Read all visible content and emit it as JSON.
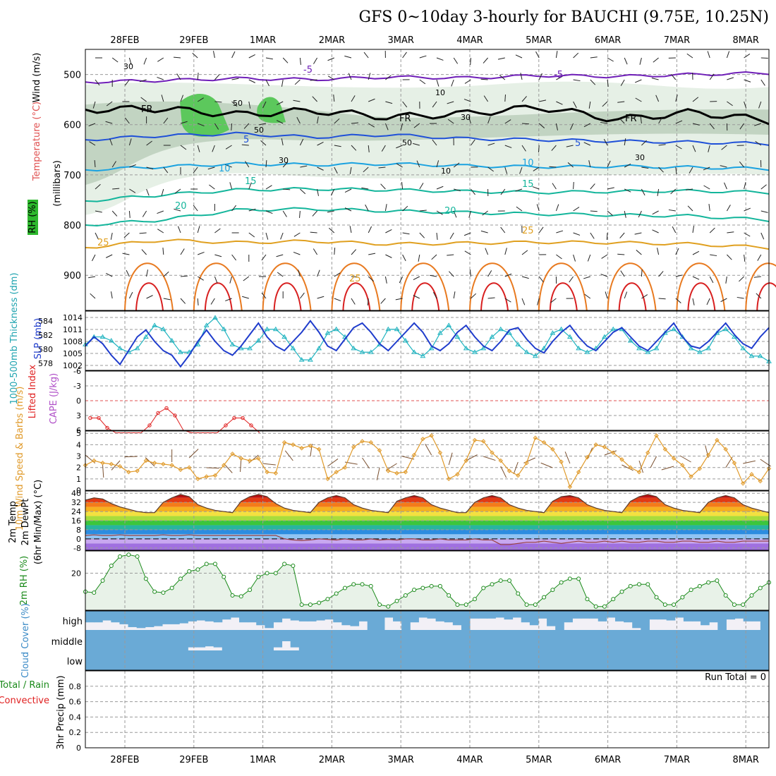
{
  "title": "GFS 0~10day 3-hourly for BAUCHI (9.75E, 10.25N)",
  "colors": {
    "temp_low": "#6f1fb8",
    "temp_5": "#1f50d8",
    "temp_10": "#1aa2e0",
    "temp_15": "#13b59b",
    "temp_25": "#e0a020",
    "temp_30": "#e87a20",
    "temp_35": "#d82020",
    "rh_light": "#e6f0e6",
    "rh_mid": "#b9cdb9",
    "rh_dark": "#9cb29c",
    "rh_wet": "#5cc85c",
    "slp": "#1f3ccc",
    "thickness": "#20b4c0",
    "lifted": "#e02020",
    "wind10": "#e09a2a",
    "barb": "#7a5030",
    "rh2m": "#1a8a1a",
    "cloud": "#6aaad6",
    "cloud_clear": "#f2f0f6"
  },
  "chart_data": {
    "type": "meteogram",
    "x_axis": {
      "dates": [
        "28FEB",
        "29FEB",
        "1MAR",
        "2MAR",
        "3MAR",
        "4MAR",
        "5MAR",
        "6MAR",
        "7MAR",
        "8MAR"
      ],
      "step_hours": 3
    },
    "upper_air": {
      "ylabel": "(millibars)",
      "left_labels": [
        "Wind (m/s)",
        "Temperature (°C)",
        "RH (%)"
      ],
      "ylim": [
        450,
        970
      ],
      "yticks": [
        500,
        600,
        700,
        800,
        900
      ],
      "isotherms": [
        {
          "label": "-5",
          "levels_mb": [
            515,
            512,
            508,
            510,
            505,
            507,
            502,
            504,
            500,
            497
          ]
        },
        {
          "label": "FR",
          "levels_mb": [
            570,
            568,
            580,
            572,
            585,
            578,
            565,
            590,
            575,
            592
          ]
        },
        {
          "label": "5",
          "levels_mb": [
            630,
            622,
            618,
            625,
            620,
            628,
            630,
            633,
            635,
            638
          ]
        },
        {
          "label": "10",
          "levels_mb": [
            690,
            684,
            678,
            680,
            678,
            682,
            684,
            683,
            685,
            688
          ]
        },
        {
          "label": "15",
          "levels_mb": [
            752,
            740,
            730,
            728,
            730,
            733,
            735,
            733,
            732,
            735
          ]
        },
        {
          "label": "20",
          "levels_mb": [
            800,
            790,
            770,
            768,
            772,
            775,
            778,
            780,
            782,
            790
          ]
        },
        {
          "label": "25",
          "levels_mb": [
            845,
            830,
            835,
            832,
            838,
            836,
            834,
            835,
            838,
            845
          ]
        }
      ],
      "isotherm_text": [
        "-5",
        "-5",
        "FR",
        "FR",
        "FR",
        "5",
        "5",
        "10",
        "10",
        "15",
        "15",
        "20",
        "20",
        "25",
        "25",
        "25"
      ],
      "rh_contour_labels": [
        "30",
        "50",
        "10",
        "50",
        "30",
        "50",
        "30",
        "10",
        "30"
      ]
    },
    "slp_thickness": {
      "left_labels": [
        "1000-500mb Thickness (dm)",
        "SLP (mb)"
      ],
      "slp_ylim": [
        1002,
        1014
      ],
      "slp_ticks": [
        "1014",
        "1011",
        "1008",
        "1005",
        "1002"
      ],
      "thick_ylim": [
        578,
        585
      ],
      "thick_ticks": [
        "584",
        "582",
        "580",
        "578"
      ],
      "slp": [
        1007,
        1009,
        1007.5,
        1005,
        1003,
        1006,
        1009,
        1010.5,
        1008,
        1006,
        1005,
        1002.5,
        1005,
        1008,
        1010.5,
        1008,
        1006,
        1005,
        1007,
        1009.5,
        1012,
        1009,
        1007,
        1006,
        1008,
        1010,
        1012.5,
        1010,
        1007,
        1006,
        1008.5,
        1011,
        1012,
        1010,
        1007.5,
        1006,
        1008,
        1010,
        1012,
        1010,
        1007,
        1006,
        1007.5,
        1010,
        1011.5,
        1009,
        1007,
        1006,
        1008,
        1010.5,
        1011,
        1008.5,
        1006.5,
        1005.5,
        1008,
        1010,
        1011.5,
        1009,
        1007,
        1006,
        1008,
        1010,
        1011,
        1009,
        1007,
        1006,
        1008,
        1010,
        1012,
        1009,
        1007,
        1006.5,
        1008,
        1010,
        1012,
        1009.5,
        1007.5,
        1006.5,
        1009,
        1011
      ],
      "thickness": [
        581,
        582,
        582,
        581.5,
        580.5,
        580,
        580.5,
        582,
        583.5,
        583,
        581.5,
        580,
        580,
        581,
        583.5,
        584.5,
        583,
        581,
        580.5,
        580.5,
        581.5,
        583,
        583,
        582,
        580.5,
        579,
        579,
        580.5,
        582.5,
        583,
        582,
        580.5,
        580,
        580,
        581,
        583,
        583,
        581.5,
        580,
        579.5,
        580.5,
        582.5,
        583.5,
        582,
        580.5,
        580,
        580.5,
        582,
        583,
        582.5,
        581,
        580,
        579.5,
        580.5,
        582.5,
        583,
        582,
        580.5,
        580,
        580.5,
        582,
        583,
        583,
        581.5,
        580.5,
        580,
        580.5,
        582.5,
        583,
        582,
        580.5,
        580,
        580.5,
        582.5,
        583,
        582,
        580.5,
        579.5,
        579.5,
        578.8
      ]
    },
    "cape_lifted": {
      "left_labels": [
        "Lifted Index",
        "CAPE (J/kg)"
      ],
      "ylim": [
        -6,
        6
      ],
      "ticks": [
        "-6",
        "-3",
        "0",
        "3",
        "6"
      ],
      "lifted_index": [
        3.5,
        3.5,
        5.5,
        6.5,
        6.5,
        6.5,
        6.5,
        5,
        2.5,
        1.5,
        3,
        6,
        6.5,
        6.5,
        6.5,
        6.5,
        5,
        3.5,
        3.5,
        5,
        6.5
      ]
    },
    "wind10m": {
      "left_labels": [
        "10m Wind Speed & Barbs (m/s)"
      ],
      "ylim": [
        0,
        5.2
      ],
      "ticks": [
        "5",
        "4",
        "3",
        "2",
        "1",
        "0"
      ],
      "speed": [
        2.2,
        2.6,
        2.4,
        2.3,
        2.1,
        1.6,
        1.7,
        2.6,
        2.4,
        2.3,
        2.2,
        1.8,
        2.0,
        1.0,
        1.2,
        1.3,
        2.2,
        3.2,
        2.8,
        2.6,
        2.8,
        1.6,
        1.5,
        4.2,
        4.0,
        3.7,
        3.9,
        3.6,
        1.0,
        1.6,
        2.0,
        3.8,
        4.3,
        4.2,
        3.5,
        1.7,
        1.5,
        1.6,
        3.1,
        4.5,
        4.8,
        3.3,
        1.0,
        1.4,
        2.6,
        4.4,
        4.3,
        3.3,
        2.6,
        1.7,
        1.3,
        2.4,
        4.6,
        4.2,
        3.6,
        2.5,
        0.3,
        1.6,
        2.9,
        4.0,
        3.8,
        3.3,
        2.7,
        2.0,
        1.6,
        3.3,
        4.8,
        3.6,
        2.8,
        2.2,
        1.2,
        1.9,
        3.1,
        4.4,
        3.6,
        2.4,
        0.6,
        1.4,
        0.8,
        1.9
      ]
    },
    "temp2m": {
      "left_labels": [
        "2m Temp",
        "2m DewPt",
        "(6hr Min/Max) (°C)"
      ],
      "ylim": [
        -10,
        42
      ],
      "ticks": [
        "40",
        "32",
        "24",
        "16",
        "8",
        "0",
        "-8"
      ],
      "temp": [
        34,
        36,
        35,
        31,
        28,
        26,
        24,
        23,
        23,
        32,
        36,
        39,
        37,
        30,
        27,
        25,
        24,
        23,
        33,
        37,
        39,
        37,
        31,
        27,
        25,
        24,
        23,
        32,
        36,
        38,
        36,
        30,
        27,
        25,
        24,
        23,
        33,
        36,
        38,
        36,
        30,
        27,
        25,
        23,
        23,
        32,
        36,
        38,
        36,
        30,
        27,
        25,
        24,
        23,
        33,
        37,
        38,
        36,
        30,
        27,
        25,
        24,
        23,
        33,
        37,
        39,
        37,
        30,
        27,
        25,
        24,
        23,
        32,
        36,
        38,
        36,
        30,
        27,
        25,
        23
      ],
      "dewpoint": [
        3,
        3.5,
        3,
        3,
        3.5,
        3,
        3,
        3,
        3,
        3.5,
        3,
        3,
        3.5,
        3,
        3,
        3,
        3,
        3,
        3,
        3,
        3,
        3,
        3,
        0,
        -1,
        -1.5,
        -1,
        0,
        -0.5,
        -1,
        0,
        -1,
        -1,
        0,
        -1,
        -0.5,
        -1,
        0,
        0,
        -1,
        -1,
        0,
        -1,
        -1,
        -1,
        0,
        -1,
        -1,
        -5,
        -5,
        -4,
        -3,
        -3,
        -2,
        -3,
        -4,
        -3,
        -2,
        -3,
        -3,
        -2,
        -3,
        -2,
        -3,
        -3,
        -2,
        -2,
        -3,
        -3,
        -2,
        -2,
        -3,
        -3,
        -2,
        -3,
        -3,
        -2,
        -2,
        -2,
        -2
      ]
    },
    "rh2m": {
      "left_labels": [
        "2m RH (%)"
      ],
      "ylim": [
        0,
        32
      ],
      "ticks": [
        "20"
      ],
      "values": [
        10,
        9.5,
        16,
        24,
        29,
        30,
        29,
        17,
        10,
        9.5,
        12,
        17,
        21,
        22,
        25,
        25,
        18,
        8,
        7.5,
        11,
        18,
        20,
        20,
        25,
        24,
        3,
        3,
        4,
        6,
        9,
        12,
        14,
        14,
        13,
        3,
        2,
        5,
        8,
        11,
        12,
        13,
        13,
        8,
        3,
        3,
        6,
        12,
        14,
        16,
        16,
        9,
        3,
        3,
        7,
        11,
        15,
        17,
        17,
        6,
        2,
        2,
        6,
        10,
        13,
        14,
        14,
        7,
        3,
        3,
        7,
        11,
        13,
        15,
        16,
        8,
        3,
        3,
        8,
        12,
        15
      ]
    },
    "cloud_cover": {
      "left_labels": [
        "Cloud Cover (%)"
      ],
      "levels": [
        "high",
        "middle",
        "low"
      ],
      "high_percent": [
        60,
        60,
        50,
        60,
        70,
        85,
        90,
        85,
        80,
        70,
        70,
        65,
        55,
        50,
        55,
        60,
        45,
        35,
        60,
        60,
        75,
        90,
        60,
        40,
        50,
        55,
        55,
        50,
        45,
        60,
        75,
        80,
        55,
        100,
        100,
        35,
        55,
        100,
        60,
        35,
        40,
        55,
        60,
        75,
        100,
        40,
        40,
        40,
        35,
        45,
        35,
        60,
        75,
        40,
        80,
        100,
        60,
        40,
        40,
        40,
        55,
        35,
        55,
        60,
        90,
        100,
        45,
        45,
        50,
        35,
        55,
        55,
        75,
        60,
        100,
        45,
        40,
        55,
        55,
        100
      ],
      "middle_percent": [
        100,
        100,
        100,
        100,
        100,
        100,
        100,
        100,
        100,
        100,
        100,
        100,
        85,
        85,
        80,
        85,
        100,
        100,
        100,
        100,
        100,
        100,
        85,
        55,
        85,
        100,
        100,
        100,
        100,
        100,
        100,
        100,
        100,
        100,
        100,
        100,
        100,
        100,
        100,
        100,
        100,
        100,
        100,
        100,
        100,
        100,
        100,
        100,
        100,
        100,
        100,
        100,
        100,
        100,
        100,
        100,
        100,
        100,
        100,
        100,
        100,
        100,
        100,
        100,
        100,
        100,
        100,
        100,
        100,
        100,
        100,
        100,
        100,
        100,
        100,
        100,
        100,
        100,
        100,
        100
      ],
      "low_percent": [
        100,
        100,
        100,
        100,
        100,
        100,
        100,
        100,
        100,
        100,
        100,
        100,
        100,
        100,
        100,
        100,
        100,
        100,
        100,
        100,
        100,
        100,
        100,
        100,
        100,
        100,
        100,
        100,
        100,
        100,
        100,
        100,
        100,
        100,
        100,
        100,
        100,
        100,
        100,
        100,
        100,
        100,
        100,
        100,
        100,
        100,
        100,
        100,
        100,
        100,
        100,
        100,
        100,
        100,
        100,
        100,
        100,
        100,
        100,
        100,
        100,
        100,
        100,
        100,
        100,
        100,
        100,
        100,
        100,
        100,
        100,
        100,
        100,
        100,
        100,
        100,
        100,
        100,
        100,
        100
      ]
    },
    "precip": {
      "left_labels": [
        "Total / Rain",
        "Convective",
        "3hr Precip (mm)"
      ],
      "ylim": [
        0,
        1
      ],
      "ticks": [
        "0.8",
        "0.6",
        "0.4",
        "0.2",
        "0"
      ],
      "run_total": "Run Total = 0"
    }
  }
}
